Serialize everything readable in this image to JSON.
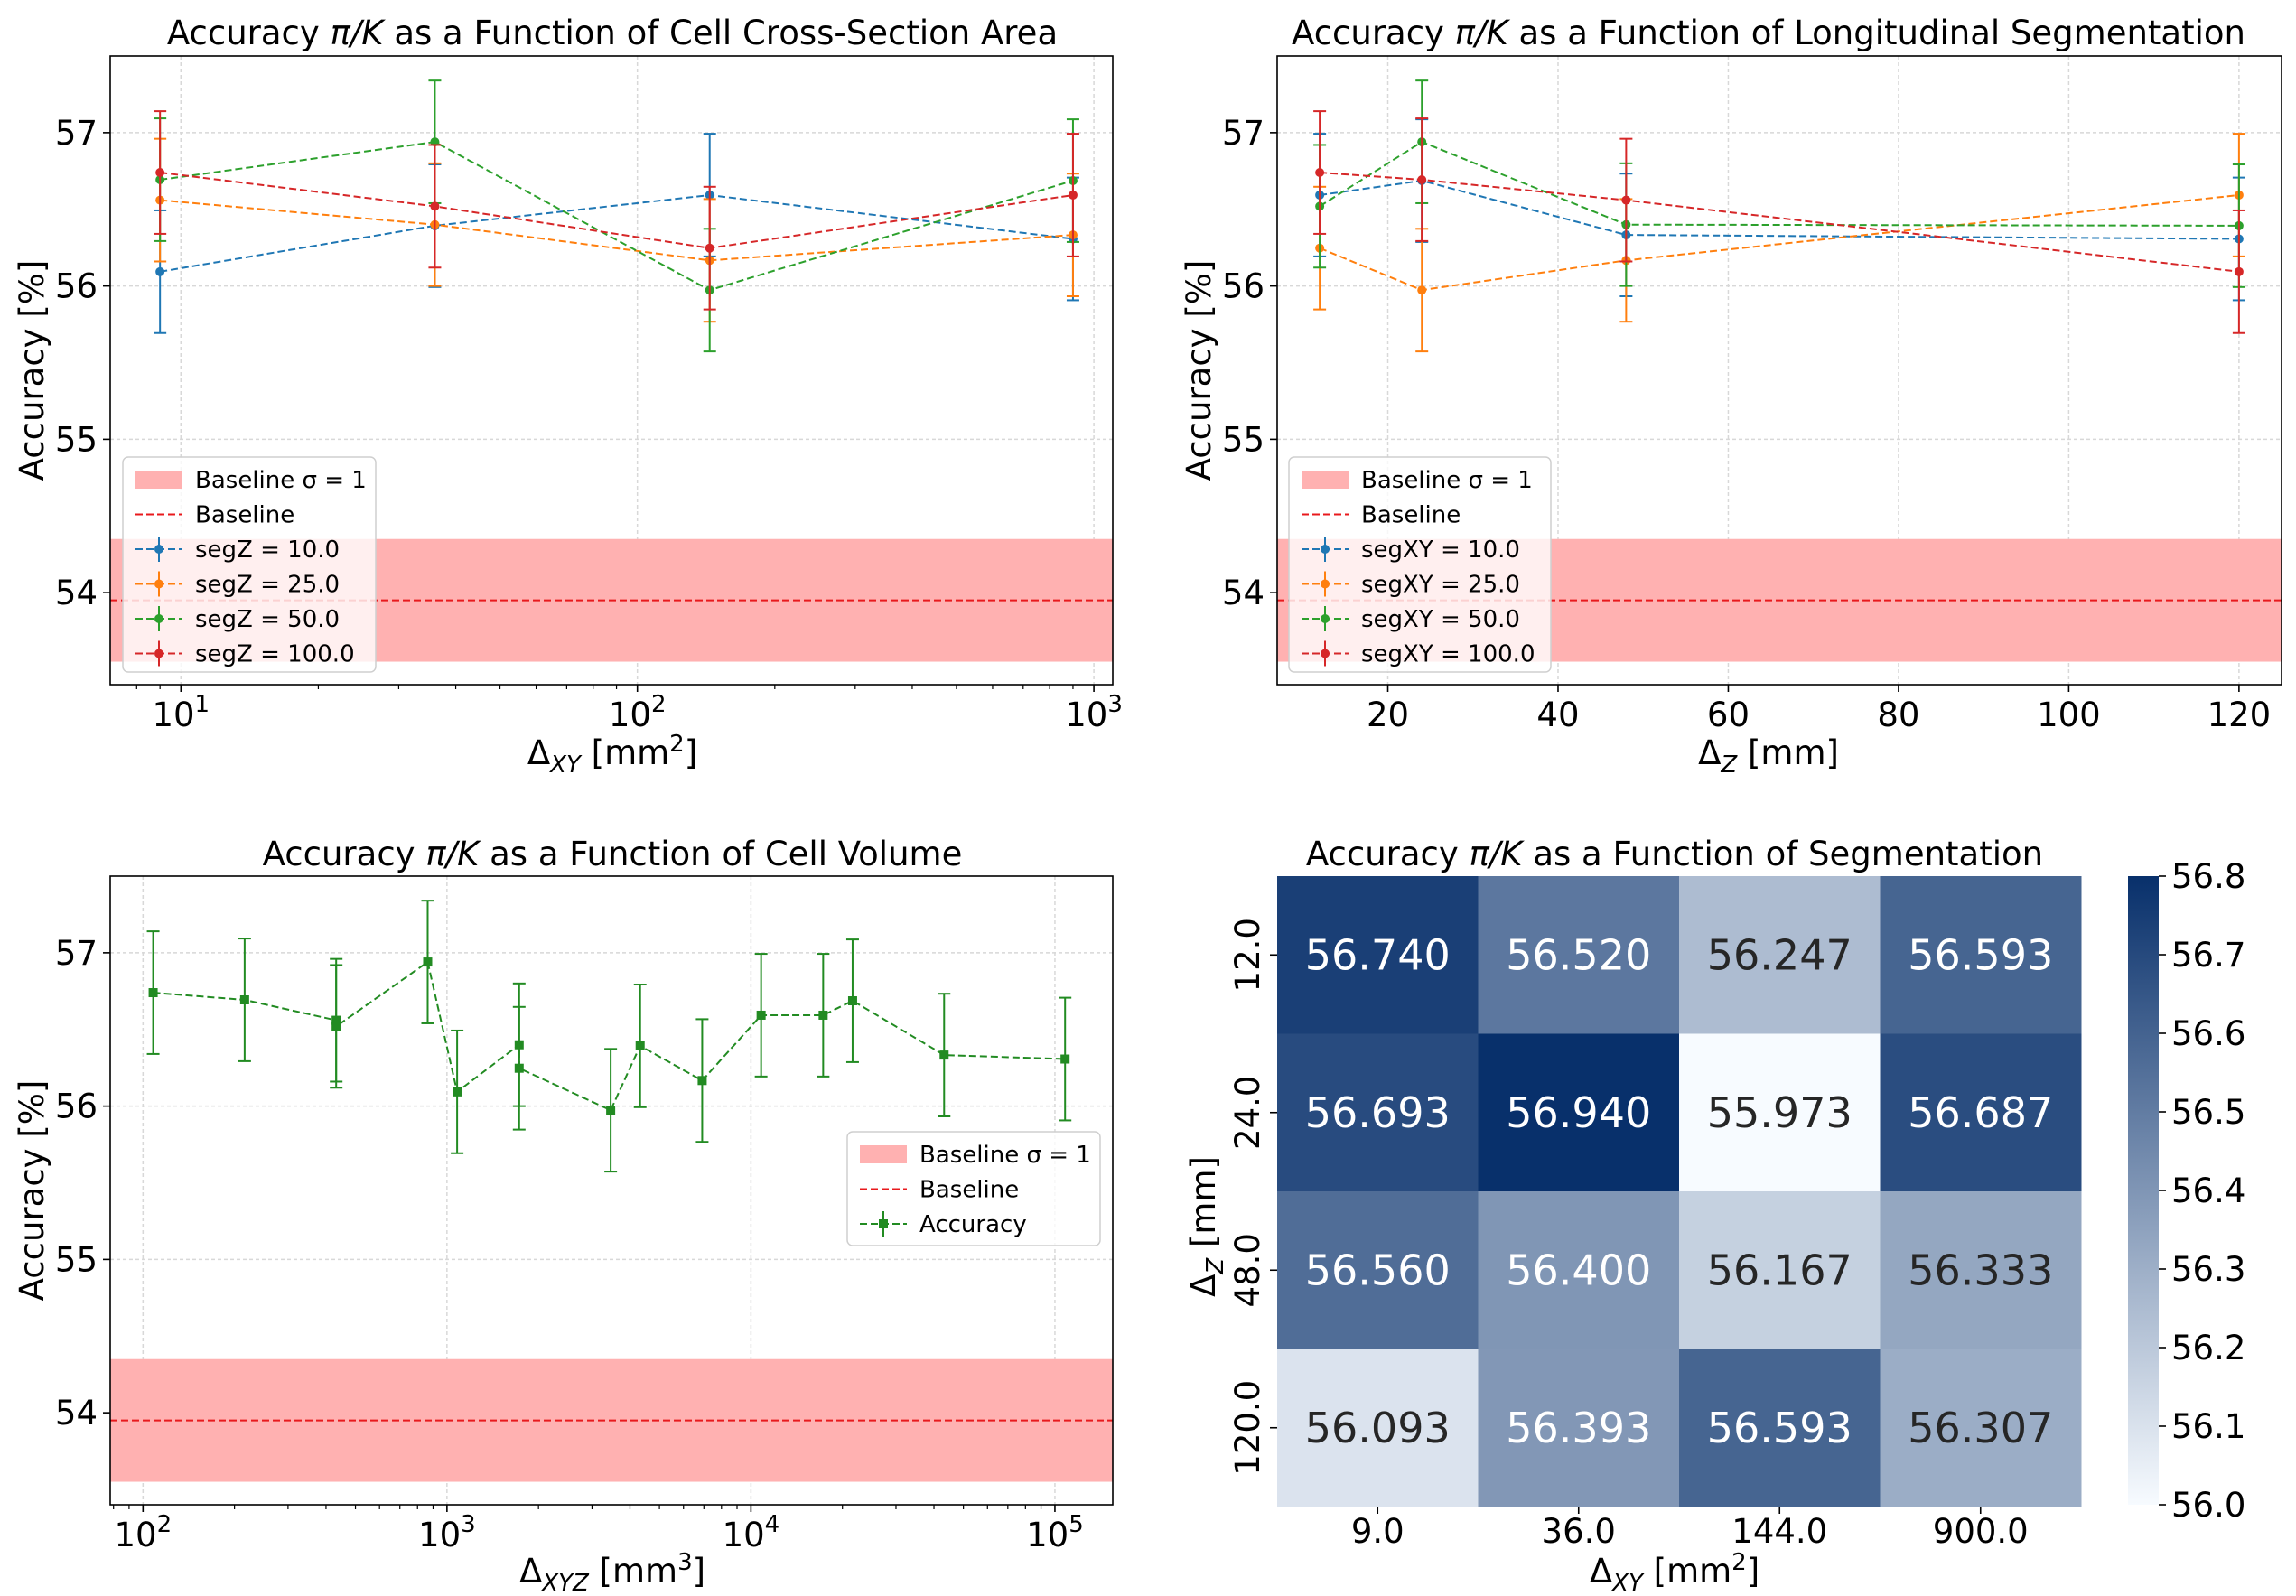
{
  "colors": {
    "seg1": "#1f77b4",
    "seg2": "#ff7f0e",
    "seg3": "#2ca02c",
    "seg4": "#d62728",
    "volume": "#228b22",
    "baseline_band": "#ffb1b1",
    "baseline_line": "#e8191c",
    "grid": "#d8d8d8",
    "cmap_low": "#f7fbff",
    "cmap_high": "#08306b"
  },
  "chart_data": [
    {
      "type": "line",
      "title_a": "Accuracy ",
      "title_sym": "π/K",
      "title_b": " as a Function of Cell Cross-Section Area",
      "xlabel": "Δ",
      "xlabel_sub": "XY",
      "xlabel_unit": " [mm",
      "xlabel_sup": "2",
      "xlabel_end": "]",
      "ylabel": "Accuracy [%]",
      "xscale": "log",
      "xlim": [
        7,
        1100
      ],
      "ylim": [
        53.4,
        57.5
      ],
      "xticks": [
        {
          "value": 10,
          "base": "10",
          "exp": "1"
        },
        {
          "value": 100,
          "base": "10",
          "exp": "2"
        },
        {
          "value": 1000,
          "base": "10",
          "exp": "3"
        }
      ],
      "yticks": [
        54,
        55,
        56,
        57
      ],
      "baseline": {
        "value": 53.95,
        "sigma_low": 53.55,
        "sigma_high": 54.35
      },
      "legend": [
        "Baseline σ = 1",
        "Baseline",
        "segZ = 10.0",
        "segZ = 25.0",
        "segZ = 50.0",
        "segZ = 100.0"
      ],
      "series": [
        {
          "name": "segZ = 10.0",
          "x": [
            9,
            36,
            144,
            900
          ],
          "y": [
            56.093,
            56.393,
            56.593,
            56.307
          ],
          "err": [
            0.4,
            0.4,
            0.4,
            0.4
          ]
        },
        {
          "name": "segZ = 25.0",
          "x": [
            9,
            36,
            144,
            900
          ],
          "y": [
            56.56,
            56.4,
            56.167,
            56.333
          ],
          "err": [
            0.4,
            0.4,
            0.4,
            0.4
          ]
        },
        {
          "name": "segZ = 50.0",
          "x": [
            9,
            36,
            144,
            900
          ],
          "y": [
            56.693,
            56.94,
            55.973,
            56.687
          ],
          "err": [
            0.4,
            0.4,
            0.4,
            0.4
          ]
        },
        {
          "name": "segZ = 100.0",
          "x": [
            9,
            36,
            144,
            900
          ],
          "y": [
            56.74,
            56.52,
            56.247,
            56.593
          ],
          "err": [
            0.4,
            0.4,
            0.4,
            0.4
          ]
        }
      ]
    },
    {
      "type": "line",
      "title_a": "Accuracy ",
      "title_sym": "π/K",
      "title_b": " as a Function of Longitudinal Segmentation",
      "xlabel": "Δ",
      "xlabel_sub": "Z",
      "xlabel_unit": " [mm]",
      "ylabel": "Accuracy [%]",
      "xscale": "linear",
      "xlim": [
        7,
        125
      ],
      "ylim": [
        53.4,
        57.5
      ],
      "xticks": [
        {
          "value": 20,
          "label": "20"
        },
        {
          "value": 40,
          "label": "40"
        },
        {
          "value": 60,
          "label": "60"
        },
        {
          "value": 80,
          "label": "80"
        },
        {
          "value": 100,
          "label": "100"
        },
        {
          "value": 120,
          "label": "120"
        }
      ],
      "yticks": [
        54,
        55,
        56,
        57
      ],
      "baseline": {
        "value": 53.95,
        "sigma_low": 53.55,
        "sigma_high": 54.35
      },
      "legend": [
        "Baseline σ = 1",
        "Baseline",
        "segXY = 10.0",
        "segXY = 25.0",
        "segXY = 50.0",
        "segXY = 100.0"
      ],
      "series": [
        {
          "name": "segXY = 10.0",
          "x": [
            12,
            24,
            48,
            120
          ],
          "y": [
            56.593,
            56.687,
            56.333,
            56.307
          ],
          "err": [
            0.4,
            0.4,
            0.4,
            0.4
          ]
        },
        {
          "name": "segXY = 25.0",
          "x": [
            12,
            24,
            48,
            120
          ],
          "y": [
            56.247,
            55.973,
            56.167,
            56.593
          ],
          "err": [
            0.4,
            0.4,
            0.4,
            0.4
          ]
        },
        {
          "name": "segXY = 50.0",
          "x": [
            12,
            24,
            48,
            120
          ],
          "y": [
            56.52,
            56.94,
            56.4,
            56.393
          ],
          "err": [
            0.4,
            0.4,
            0.4,
            0.4
          ]
        },
        {
          "name": "segXY = 100.0",
          "x": [
            12,
            24,
            48,
            120
          ],
          "y": [
            56.74,
            56.693,
            56.56,
            56.093
          ],
          "err": [
            0.4,
            0.4,
            0.4,
            0.4
          ]
        }
      ]
    },
    {
      "type": "line",
      "title_a": "Accuracy ",
      "title_sym": "π/K",
      "title_b": " as a Function of Cell Volume",
      "xlabel": "Δ",
      "xlabel_sub": "XYZ",
      "xlabel_unit": " [mm",
      "xlabel_sup": "3",
      "xlabel_end": "]",
      "ylabel": "Accuracy [%]",
      "xscale": "log",
      "xlim": [
        78,
        155000
      ],
      "ylim": [
        53.4,
        57.5
      ],
      "xticks": [
        {
          "value": 100,
          "base": "10",
          "exp": "2"
        },
        {
          "value": 1000,
          "base": "10",
          "exp": "3"
        },
        {
          "value": 10000,
          "base": "10",
          "exp": "4"
        },
        {
          "value": 100000,
          "base": "10",
          "exp": "5"
        }
      ],
      "yticks": [
        54,
        55,
        56,
        57
      ],
      "baseline": {
        "value": 53.95,
        "sigma_low": 53.55,
        "sigma_high": 54.35
      },
      "legend": [
        "Baseline σ = 1",
        "Baseline",
        "Accuracy"
      ],
      "series": [
        {
          "name": "Accuracy",
          "x": [
            108,
            216,
            432,
            432,
            864,
            1080,
            1728,
            1728,
            3456,
            4320,
            6912,
            10800,
            17280,
            21600,
            43200,
            108000
          ],
          "y": [
            56.74,
            56.693,
            56.56,
            56.52,
            56.94,
            56.093,
            56.4,
            56.247,
            55.973,
            56.393,
            56.167,
            56.593,
            56.593,
            56.687,
            56.333,
            56.307
          ],
          "err": [
            0.4,
            0.4,
            0.4,
            0.4,
            0.4,
            0.4,
            0.4,
            0.4,
            0.4,
            0.4,
            0.4,
            0.4,
            0.4,
            0.4,
            0.4,
            0.4
          ]
        }
      ]
    },
    {
      "type": "heatmap",
      "title_a": "Accuracy ",
      "title_sym": "π/K",
      "title_b": " as a Function of Segmentation",
      "xlabel": "Δ",
      "xlabel_sub": "XY",
      "xlabel_unit": " [mm",
      "xlabel_sup": "2",
      "xlabel_end": "]",
      "ylabel": "Δ",
      "ylabel_sub": "Z",
      "ylabel_unit": " [mm]",
      "x_categories": [
        "9.0",
        "36.0",
        "144.0",
        "900.0"
      ],
      "y_categories": [
        "12.0",
        "24.0",
        "48.0",
        "120.0"
      ],
      "values": [
        [
          "56.740",
          "56.520",
          "56.247",
          "56.593"
        ],
        [
          "56.693",
          "56.940",
          "55.973",
          "56.687"
        ],
        [
          "56.560",
          "56.400",
          "56.167",
          "56.333"
        ],
        [
          "56.093",
          "56.393",
          "56.593",
          "56.307"
        ]
      ],
      "vmin": 56.0,
      "vmax": 56.8,
      "colorbar_ticks": [
        "56.0",
        "56.1",
        "56.2",
        "56.3",
        "56.4",
        "56.5",
        "56.6",
        "56.7",
        "56.8"
      ]
    }
  ]
}
